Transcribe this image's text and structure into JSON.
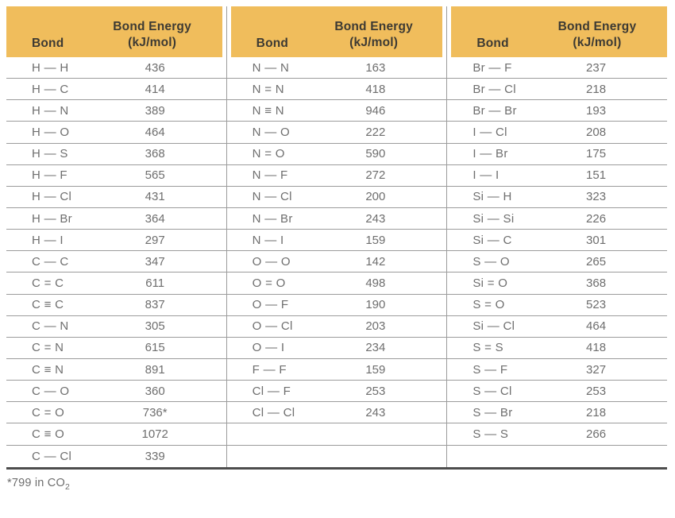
{
  "colors": {
    "header_bg": "#F0BD5C",
    "header_text": "#3D3A33",
    "body_text": "#6E6E6E",
    "row_line": "#9C9C9C",
    "bottom_border": "#4D4D4D",
    "background": "#FFFFFF"
  },
  "table": {
    "header": {
      "bond_label": "Bond",
      "energy_line1": "Bond Energy",
      "energy_line2": "(kJ/mol)"
    },
    "groups": [
      {
        "rows": [
          {
            "bond": "H — H",
            "energy": "436"
          },
          {
            "bond": "H — C",
            "energy": "414"
          },
          {
            "bond": "H — N",
            "energy": "389"
          },
          {
            "bond": "H — O",
            "energy": "464"
          },
          {
            "bond": "H — S",
            "energy": "368"
          },
          {
            "bond": "H — F",
            "energy": "565"
          },
          {
            "bond": "H — Cl",
            "energy": "431"
          },
          {
            "bond": "H — Br",
            "energy": "364"
          },
          {
            "bond": "H — I",
            "energy": "297"
          },
          {
            "bond": "C — C",
            "energy": "347"
          },
          {
            "bond": "C = C",
            "energy": "611"
          },
          {
            "bond": "C ≡ C",
            "energy": "837"
          },
          {
            "bond": "C — N",
            "energy": "305"
          },
          {
            "bond": "C = N",
            "energy": "615"
          },
          {
            "bond": "C ≡ N",
            "energy": "891"
          },
          {
            "bond": "C — O",
            "energy": "360"
          },
          {
            "bond": "C = O",
            "energy": "736*"
          },
          {
            "bond": "C ≡ O",
            "energy": "1072"
          },
          {
            "bond": "C — Cl",
            "energy": "339"
          }
        ]
      },
      {
        "rows": [
          {
            "bond": "N — N",
            "energy": "163"
          },
          {
            "bond": "N = N",
            "energy": "418"
          },
          {
            "bond": "N ≡ N",
            "energy": "946"
          },
          {
            "bond": "N — O",
            "energy": "222"
          },
          {
            "bond": "N = O",
            "energy": "590"
          },
          {
            "bond": "N — F",
            "energy": "272"
          },
          {
            "bond": "N — Cl",
            "energy": "200"
          },
          {
            "bond": "N — Br",
            "energy": "243"
          },
          {
            "bond": "N — I",
            "energy": "159"
          },
          {
            "bond": "O — O",
            "energy": "142"
          },
          {
            "bond": "O = O",
            "energy": "498"
          },
          {
            "bond": "O — F",
            "energy": "190"
          },
          {
            "bond": "O — Cl",
            "energy": "203"
          },
          {
            "bond": "O — I",
            "energy": "234"
          },
          {
            "bond": "F — F",
            "energy": "159"
          },
          {
            "bond": "Cl — F",
            "energy": "253"
          },
          {
            "bond": "Cl — Cl",
            "energy": "243"
          }
        ]
      },
      {
        "rows": [
          {
            "bond": "Br — F",
            "energy": "237"
          },
          {
            "bond": "Br — Cl",
            "energy": "218"
          },
          {
            "bond": "Br — Br",
            "energy": "193"
          },
          {
            "bond": "I — Cl",
            "energy": "208"
          },
          {
            "bond": "I — Br",
            "energy": "175"
          },
          {
            "bond": "I — I",
            "energy": "151"
          },
          {
            "bond": "Si — H",
            "energy": "323"
          },
          {
            "bond": "Si — Si",
            "energy": "226"
          },
          {
            "bond": "Si — C",
            "energy": "301"
          },
          {
            "bond": "S — O",
            "energy": "265"
          },
          {
            "bond": "Si = O",
            "energy": "368"
          },
          {
            "bond": "S = O",
            "energy": "523"
          },
          {
            "bond": "Si — Cl",
            "energy": "464"
          },
          {
            "bond": "S = S",
            "energy": "418"
          },
          {
            "bond": "S — F",
            "energy": "327"
          },
          {
            "bond": "S — Cl",
            "energy": "253"
          },
          {
            "bond": "S — Br",
            "energy": "218"
          },
          {
            "bond": "S — S",
            "energy": "266"
          }
        ]
      }
    ],
    "footnote": {
      "main": "*799 in CO",
      "sub": "2"
    }
  }
}
